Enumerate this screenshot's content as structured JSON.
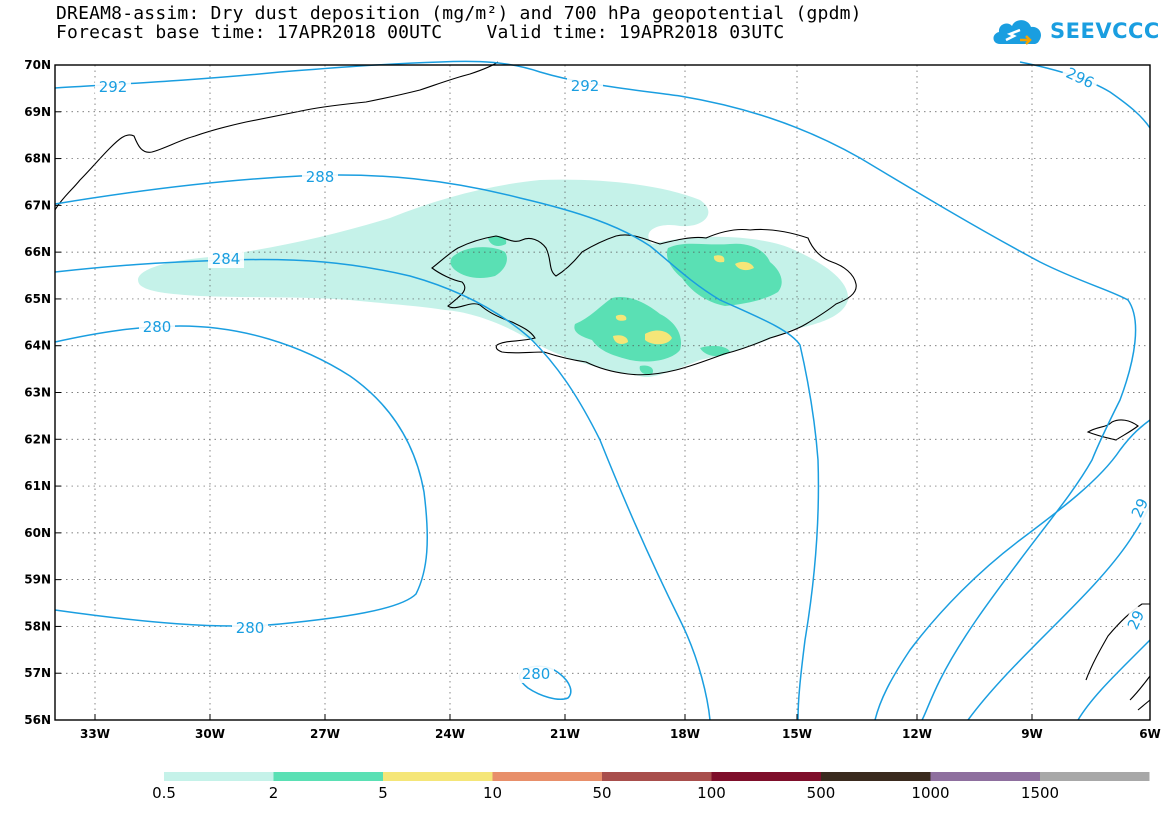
{
  "title_line1": "DREAM8-assim: Dry dust deposition (mg/m²) and 700 hPa geopotential (gpdm)",
  "title_line2": "Forecast base time: 17APR2018 00UTC    Valid time: 19APR2018 03UTC",
  "logo_text": "SEEVCCC",
  "lat_labels": [
    "70N",
    "69N",
    "68N",
    "67N",
    "66N",
    "65N",
    "64N",
    "63N",
    "62N",
    "61N",
    "60N",
    "59N",
    "58N",
    "57N",
    "56N"
  ],
  "lon_labels": [
    "33W",
    "30W",
    "27W",
    "24W",
    "21W",
    "18W",
    "15W",
    "12W",
    "9W",
    "6W"
  ],
  "contour_labels": [
    "292",
    "292",
    "296",
    "288",
    "284",
    "280",
    "280",
    "280",
    "29",
    "29"
  ],
  "legend": {
    "labels": [
      "0.5",
      "2",
      "5",
      "10",
      "50",
      "100",
      "500",
      "1000",
      "1500"
    ],
    "colors": [
      "#c5f2e9",
      "#5ae0b4",
      "#f5e678",
      "#e88f6a",
      "#a84e4c",
      "#7e0e2a",
      "#3a2a1e",
      "#8e6f9e",
      "#a8a8a8"
    ]
  },
  "colors": {
    "contour": "#1a9ee0",
    "dust_light": "#c5f2e9",
    "dust_mid": "#5ae0b4",
    "dust_high": "#f5e678"
  }
}
